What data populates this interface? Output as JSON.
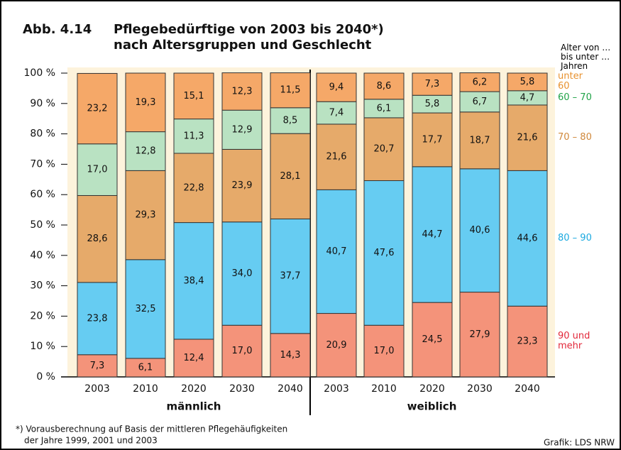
{
  "chart_data": {
    "type": "bar",
    "stacked": true,
    "figure_label": "Abb. 4.14",
    "title": "Pflegebedürftige von 2003 bis 2040*)",
    "subtitle": "nach Altersgruppen und Geschlecht",
    "legend_title": "Alter von … bis unter … Jahren",
    "categories": [
      "2003",
      "2010",
      "2020",
      "2030",
      "2040",
      "2003",
      "2010",
      "2020",
      "2030",
      "2040"
    ],
    "groups": [
      "männlich",
      "weiblich"
    ],
    "ylim": [
      0,
      100
    ],
    "yticks": [
      {
        "value": 0,
        "label": "0 %"
      },
      {
        "value": 10,
        "label": "10 %"
      },
      {
        "value": 20,
        "label": "20 %"
      },
      {
        "value": 30,
        "label": "30 %"
      },
      {
        "value": 40,
        "label": "40 %"
      },
      {
        "value": 50,
        "label": "50 %"
      },
      {
        "value": 60,
        "label": "60 %"
      },
      {
        "value": 70,
        "label": "70 %"
      },
      {
        "value": 80,
        "label": "80 %"
      },
      {
        "value": 90,
        "label": "90 %"
      },
      {
        "value": 100,
        "label": "100 %"
      }
    ],
    "series": [
      {
        "name": "90 und mehr",
        "color": "#f4937a",
        "legend_color": "#e2283a",
        "values": [
          7.3,
          6.1,
          12.4,
          17.0,
          14.3,
          20.9,
          17.0,
          24.5,
          27.9,
          23.3
        ],
        "value_labels": [
          "7,3",
          "6,1",
          "12,4",
          "17,0",
          "14,3",
          "20,9",
          "17,0",
          "24,5",
          "27,9",
          "23,3"
        ]
      },
      {
        "name": "80 – 90",
        "color": "#66ccf2",
        "legend_color": "#1aa9e0",
        "values": [
          23.8,
          32.5,
          38.4,
          34.0,
          37.7,
          40.7,
          47.6,
          44.7,
          40.6,
          44.6
        ],
        "value_labels": [
          "23,8",
          "32,5",
          "38,4",
          "34,0",
          "37,7",
          "40,7",
          "47,6",
          "44,7",
          "40,6",
          "44,6"
        ]
      },
      {
        "name": "70 – 80",
        "color": "#e6aa6a",
        "legend_color": "#d0883a",
        "values": [
          28.6,
          29.3,
          22.8,
          23.9,
          28.1,
          21.6,
          20.7,
          17.7,
          18.7,
          21.6
        ],
        "value_labels": [
          "28,6",
          "29,3",
          "22,8",
          "23,9",
          "28,1",
          "21,6",
          "20,7",
          "17,7",
          "18,7",
          "21,6"
        ]
      },
      {
        "name": "60 – 70",
        "color": "#b9e2c2",
        "legend_color": "#20a348",
        "values": [
          17.0,
          12.8,
          11.3,
          12.9,
          8.5,
          7.4,
          6.1,
          5.8,
          6.7,
          4.7
        ],
        "value_labels": [
          "17,0",
          "12,8",
          "11,3",
          "12,9",
          "8,5",
          "7,4",
          "6,1",
          "5,8",
          "6,7",
          "4,7"
        ]
      },
      {
        "name": "unter 60",
        "color": "#f5a868",
        "legend_color": "#e8912e",
        "values": [
          23.2,
          19.3,
          15.1,
          12.3,
          11.5,
          9.4,
          8.6,
          7.3,
          6.2,
          5.8
        ],
        "value_labels": [
          "23,2",
          "19,3",
          "15,1",
          "12,3",
          "11,5",
          "9,4",
          "8,6",
          "7,3",
          "6,2",
          "5,8"
        ]
      }
    ],
    "footnote": [
      "*) Vorausberechnung auf Basis der mittleren Pflegehäufigkeiten",
      "der Jahre 1999, 2001 und 2003"
    ],
    "source": "Grafik: LDS NRW"
  }
}
